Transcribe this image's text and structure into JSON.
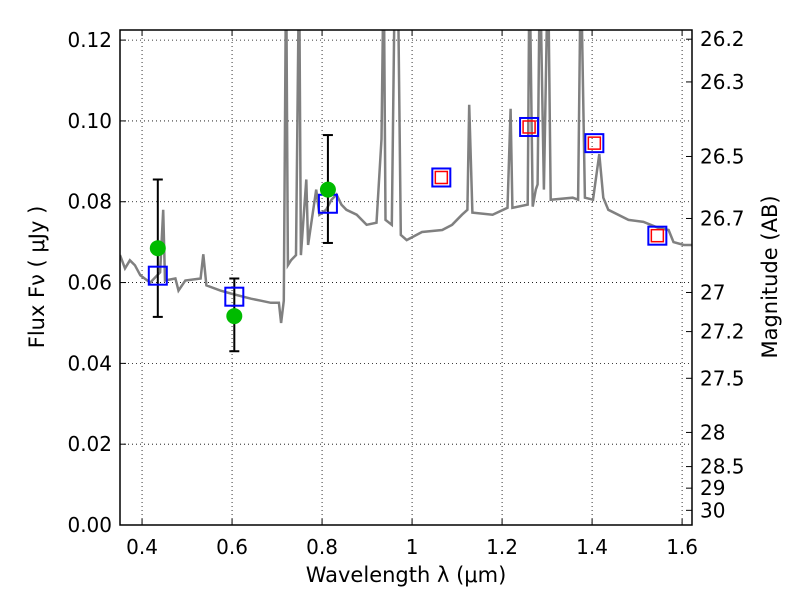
{
  "chart_data": {
    "type": "line",
    "title": "",
    "xlabel": "Wavelength  λ (μm)",
    "ylabel": "Flux  Fν  ( μJy )",
    "y2label": "Magnitude (AB)",
    "xlim": [
      0.351,
      1.622
    ],
    "ylim": [
      0.0,
      0.1225
    ],
    "grid": true,
    "xticks": [
      0.4,
      0.6,
      0.8,
      1.0,
      1.2,
      1.4,
      1.6
    ],
    "xtick_labels": [
      "0.4",
      "0.6",
      "0.8",
      "1",
      "1.2",
      "1.4",
      "1.6"
    ],
    "yticks": [
      0.0,
      0.02,
      0.04,
      0.06,
      0.08,
      0.1,
      0.12
    ],
    "ytick_labels": [
      "0.00",
      "0.02",
      "0.04",
      "0.06",
      "0.08",
      "0.10",
      "0.12"
    ],
    "y2ticks": [
      26.2,
      26.3,
      26.5,
      26.7,
      27,
      27.2,
      27.5,
      28,
      28.5,
      29,
      30
    ],
    "y2tick_labels": [
      "26.2",
      "26.3",
      "26.5",
      "26.7",
      "27",
      "27.2",
      "27.5",
      "28",
      "28.5",
      "29",
      "30"
    ],
    "ab_zeropoint": 23.9,
    "colors": {
      "spectrum": "#808080",
      "observed": "#00bb00",
      "model": "#0000ff",
      "model2": "#ff0000",
      "errorbar": "#000000"
    },
    "series": [
      {
        "name": "spectrum",
        "x": [
          0.351,
          0.362,
          0.373,
          0.384,
          0.396,
          0.418,
          0.44,
          0.447,
          0.451,
          0.474,
          0.481,
          0.496,
          0.53,
          0.536,
          0.543,
          0.574,
          0.597,
          0.642,
          0.664,
          0.686,
          0.704,
          0.709,
          0.715,
          0.72,
          0.724,
          0.731,
          0.742,
          0.749,
          0.753,
          0.765,
          0.769,
          0.787,
          0.794,
          0.809,
          0.821,
          0.832,
          0.843,
          0.854,
          0.877,
          0.899,
          0.921,
          0.932,
          0.937,
          0.941,
          0.955,
          0.962,
          0.968,
          0.975,
          0.988,
          1.022,
          1.067,
          1.089,
          1.111,
          1.123,
          1.127,
          1.134,
          1.179,
          1.212,
          1.219,
          1.223,
          1.257,
          1.261,
          1.268,
          1.275,
          1.279,
          1.284,
          1.293,
          1.302,
          1.308,
          1.357,
          1.369,
          1.375,
          1.384,
          1.402,
          1.416,
          1.425,
          1.436,
          1.481,
          1.514,
          1.548,
          1.57,
          1.581,
          1.604,
          1.622
        ],
        "y": [
          0.0668,
          0.0635,
          0.0655,
          0.0643,
          0.0618,
          0.06,
          0.0625,
          0.078,
          0.0605,
          0.061,
          0.058,
          0.0605,
          0.061,
          0.067,
          0.0593,
          0.058,
          0.0573,
          0.056,
          0.0555,
          0.055,
          0.055,
          0.05,
          0.0555,
          0.14,
          0.0643,
          0.0655,
          0.0668,
          0.14,
          0.0668,
          0.0855,
          0.0693,
          0.083,
          0.0768,
          0.078,
          0.0805,
          0.0818,
          0.0793,
          0.078,
          0.0768,
          0.0743,
          0.0748,
          0.0955,
          0.14,
          0.0755,
          0.0743,
          0.14,
          0.14,
          0.0718,
          0.0705,
          0.0725,
          0.073,
          0.0743,
          0.0768,
          0.078,
          0.104,
          0.0773,
          0.0768,
          0.0785,
          0.103,
          0.0785,
          0.0793,
          0.14,
          0.0788,
          0.083,
          0.0843,
          0.14,
          0.083,
          0.14,
          0.0805,
          0.081,
          0.0805,
          0.14,
          0.081,
          0.0805,
          0.0918,
          0.081,
          0.078,
          0.0755,
          0.075,
          0.0735,
          0.073,
          0.07,
          0.0693,
          0.0693
        ]
      },
      {
        "name": "observed",
        "x": [
          0.435,
          0.605,
          0.813
        ],
        "y": [
          0.0685,
          0.0517,
          0.083
        ],
        "yerr_low": [
          0.0515,
          0.043,
          0.0698
        ],
        "yerr_high": [
          0.0855,
          0.061,
          0.0965
        ]
      },
      {
        "name": "model_blue",
        "x": [
          0.435,
          0.605,
          0.813,
          1.065,
          1.26,
          1.405,
          1.545
        ],
        "y": [
          0.0617,
          0.0565,
          0.0795,
          0.086,
          0.0985,
          0.0945,
          0.0716
        ]
      },
      {
        "name": "model_red",
        "x": [
          1.065,
          1.26,
          1.405,
          1.545
        ],
        "y": [
          0.086,
          0.0985,
          0.0945,
          0.0716
        ]
      }
    ]
  }
}
